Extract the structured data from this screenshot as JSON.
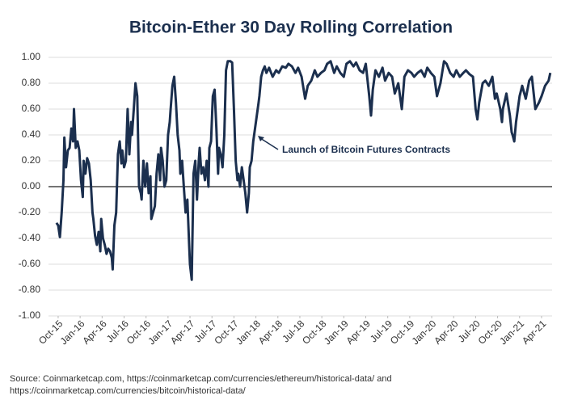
{
  "chart_data": {
    "type": "line",
    "title": "Bitcoin-Ether 30 Day Rolling Correlation",
    "annotation": "Launch of Bitcoin Futures Contracts",
    "source": [
      "Source: Coinmarketcap.com, https://coinmarketcap.com/currencies/ethereum/historical-data/ and",
      "https://coinmarketcap.com/currencies/bitcoin/historical-data/"
    ],
    "grid": true,
    "xlim": [
      2015.64,
      2021.37
    ],
    "ylim": [
      -1,
      1
    ],
    "yticks": [
      {
        "value": 1,
        "label": "1.00"
      },
      {
        "value": 0.8,
        "label": "0.80"
      },
      {
        "value": 0.6,
        "label": "0.60"
      },
      {
        "value": 0.4,
        "label": "0.40"
      },
      {
        "value": 0.2,
        "label": "0.20"
      },
      {
        "value": 0,
        "label": "0.00"
      },
      {
        "value": -0.2,
        "label": "-0.20"
      },
      {
        "value": -0.4,
        "label": "-0.40"
      },
      {
        "value": -0.6,
        "label": "-0.60"
      },
      {
        "value": -0.8,
        "label": "-0.80"
      },
      {
        "value": -1,
        "label": "-1.00"
      }
    ],
    "xticks": [
      {
        "value": 2015.75,
        "label": "Oct-15"
      },
      {
        "value": 2016.0,
        "label": "Jan-16"
      },
      {
        "value": 2016.25,
        "label": "Apr-16"
      },
      {
        "value": 2016.5,
        "label": "Jul-16"
      },
      {
        "value": 2016.75,
        "label": "Oct-16"
      },
      {
        "value": 2017.0,
        "label": "Jan-17"
      },
      {
        "value": 2017.25,
        "label": "Apr-17"
      },
      {
        "value": 2017.5,
        "label": "Jul-17"
      },
      {
        "value": 2017.75,
        "label": "Oct-17"
      },
      {
        "value": 2018.0,
        "label": "Jan-18"
      },
      {
        "value": 2018.25,
        "label": "Apr-18"
      },
      {
        "value": 2018.5,
        "label": "Jul-18"
      },
      {
        "value": 2018.75,
        "label": "Oct-18"
      },
      {
        "value": 2019.0,
        "label": "Jan-19"
      },
      {
        "value": 2019.25,
        "label": "Apr-19"
      },
      {
        "value": 2019.5,
        "label": "Jul-19"
      },
      {
        "value": 2019.75,
        "label": "Oct-19"
      },
      {
        "value": 2020.0,
        "label": "Jan-20"
      },
      {
        "value": 2020.25,
        "label": "Apr-20"
      },
      {
        "value": 2020.5,
        "label": "Jul-20"
      },
      {
        "value": 2020.75,
        "label": "Oct-20"
      },
      {
        "value": 2021.0,
        "label": "Jan-21"
      },
      {
        "value": 2021.25,
        "label": "Apr-21"
      }
    ],
    "x": [
      2015.73,
      2015.75,
      2015.77,
      2015.79,
      2015.81,
      2015.82,
      2015.84,
      2015.86,
      2015.88,
      2015.9,
      2015.92,
      2015.93,
      2015.95,
      2015.97,
      2015.99,
      2016.01,
      2016.03,
      2016.04,
      2016.06,
      2016.08,
      2016.1,
      2016.12,
      2016.14,
      2016.15,
      2016.17,
      2016.19,
      2016.21,
      2016.23,
      2016.24,
      2016.26,
      2016.28,
      2016.3,
      2016.32,
      2016.34,
      2016.36,
      2016.37,
      2016.39,
      2016.41,
      2016.43,
      2016.45,
      2016.47,
      2016.48,
      2016.5,
      2016.52,
      2016.54,
      2016.56,
      2016.58,
      2016.59,
      2016.61,
      2016.63,
      2016.65,
      2016.67,
      2016.69,
      2016.7,
      2016.72,
      2016.74,
      2016.76,
      2016.78,
      2016.8,
      2016.81,
      2016.83,
      2016.85,
      2016.87,
      2016.89,
      2016.91,
      2016.92,
      2016.94,
      2016.96,
      2016.98,
      2017.0,
      2017.02,
      2017.03,
      2017.05,
      2017.07,
      2017.09,
      2017.11,
      2017.13,
      2017.14,
      2017.16,
      2017.18,
      2017.2,
      2017.22,
      2017.24,
      2017.25,
      2017.27,
      2017.29,
      2017.31,
      2017.33,
      2017.35,
      2017.36,
      2017.38,
      2017.4,
      2017.42,
      2017.44,
      2017.46,
      2017.47,
      2017.49,
      2017.51,
      2017.53,
      2017.55,
      2017.57,
      2017.58,
      2017.6,
      2017.62,
      2017.64,
      2017.66,
      2017.68,
      2017.69,
      2017.71,
      2017.73,
      2017.75,
      2017.77,
      2017.79,
      2017.8,
      2017.82,
      2017.84,
      2017.86,
      2017.88,
      2017.9,
      2017.92,
      2017.93,
      2017.95,
      2017.97,
      2017.99,
      2018.01,
      2018.03,
      2018.04,
      2018.06,
      2018.08,
      2018.1,
      2018.12,
      2018.15,
      2018.19,
      2018.23,
      2018.26,
      2018.3,
      2018.34,
      2018.37,
      2018.41,
      2018.45,
      2018.48,
      2018.52,
      2018.56,
      2018.59,
      2018.63,
      2018.67,
      2018.7,
      2018.74,
      2018.78,
      2018.81,
      2018.85,
      2018.89,
      2018.92,
      2018.96,
      2019.0,
      2019.03,
      2019.07,
      2019.11,
      2019.14,
      2019.18,
      2019.22,
      2019.25,
      2019.29,
      2019.31,
      2019.33,
      2019.36,
      2019.4,
      2019.44,
      2019.47,
      2019.51,
      2019.55,
      2019.58,
      2019.62,
      2019.66,
      2019.69,
      2019.73,
      2019.77,
      2019.8,
      2019.84,
      2019.88,
      2019.92,
      2019.95,
      2019.99,
      2020.03,
      2020.06,
      2020.1,
      2020.14,
      2020.17,
      2020.21,
      2020.25,
      2020.28,
      2020.32,
      2020.36,
      2020.39,
      2020.43,
      2020.47,
      2020.5,
      2020.52,
      2020.54,
      2020.58,
      2020.61,
      2020.65,
      2020.69,
      2020.72,
      2020.74,
      2020.78,
      2020.8,
      2020.81,
      2020.85,
      2020.89,
      2020.91,
      2020.92,
      2020.94,
      2020.96,
      2021.0,
      2021.03,
      2021.07,
      2021.11,
      2021.14,
      2021.18,
      2021.22,
      2021.25,
      2021.29,
      2021.33,
      2021.35
    ],
    "series": [
      {
        "color": "#1b2f4e",
        "values": [
          -0.28,
          -0.3,
          -0.39,
          -0.2,
          0.05,
          0.38,
          0.15,
          0.28,
          0.3,
          0.45,
          0.35,
          0.6,
          0.3,
          0.35,
          0.28,
          0.05,
          -0.08,
          0.2,
          0.1,
          0.22,
          0.18,
          0.05,
          -0.2,
          -0.25,
          -0.38,
          -0.45,
          -0.35,
          -0.5,
          -0.25,
          -0.4,
          -0.45,
          -0.52,
          -0.48,
          -0.5,
          -0.55,
          -0.64,
          -0.3,
          -0.2,
          0.25,
          0.35,
          0.18,
          0.28,
          0.15,
          0.2,
          0.6,
          0.25,
          0.5,
          0.4,
          0.6,
          0.8,
          0.7,
          0.0,
          -0.05,
          -0.1,
          0.2,
          0.0,
          0.18,
          -0.05,
          0.08,
          -0.25,
          -0.2,
          -0.15,
          0.1,
          0.25,
          0.05,
          0.3,
          0.2,
          0.0,
          0.05,
          0.4,
          0.5,
          0.6,
          0.78,
          0.85,
          0.65,
          0.4,
          0.28,
          0.1,
          0.2,
          0.0,
          -0.2,
          -0.1,
          -0.45,
          -0.6,
          -0.72,
          0.1,
          0.2,
          -0.1,
          0.2,
          0.3,
          0.1,
          0.15,
          0.05,
          0.2,
          0.0,
          0.3,
          0.35,
          0.7,
          0.75,
          0.45,
          0.1,
          0.3,
          0.25,
          0.15,
          0.4,
          0.9,
          0.97,
          0.97,
          0.97,
          0.96,
          0.6,
          0.2,
          0.05,
          0.1,
          0.0,
          0.15,
          0.05,
          -0.05,
          -0.2,
          -0.05,
          0.15,
          0.2,
          0.35,
          0.45,
          0.55,
          0.65,
          0.7,
          0.85,
          0.9,
          0.93,
          0.88,
          0.92,
          0.85,
          0.9,
          0.88,
          0.93,
          0.92,
          0.95,
          0.93,
          0.88,
          0.92,
          0.85,
          0.68,
          0.78,
          0.82,
          0.9,
          0.85,
          0.88,
          0.9,
          0.95,
          0.97,
          0.88,
          0.93,
          0.88,
          0.85,
          0.95,
          0.97,
          0.93,
          0.96,
          0.9,
          0.88,
          0.95,
          0.7,
          0.55,
          0.75,
          0.9,
          0.85,
          0.92,
          0.82,
          0.88,
          0.85,
          0.72,
          0.8,
          0.6,
          0.85,
          0.9,
          0.88,
          0.85,
          0.88,
          0.9,
          0.85,
          0.92,
          0.88,
          0.85,
          0.7,
          0.8,
          0.97,
          0.95,
          0.88,
          0.85,
          0.9,
          0.85,
          0.88,
          0.9,
          0.87,
          0.85,
          0.6,
          0.52,
          0.65,
          0.8,
          0.82,
          0.78,
          0.85,
          0.68,
          0.72,
          0.6,
          0.5,
          0.6,
          0.72,
          0.55,
          0.42,
          0.4,
          0.35,
          0.5,
          0.7,
          0.78,
          0.68,
          0.82,
          0.85,
          0.6,
          0.65,
          0.7,
          0.78,
          0.82,
          0.88
        ]
      }
    ]
  }
}
